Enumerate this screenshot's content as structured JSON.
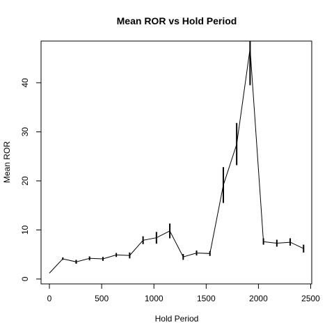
{
  "chart_data": {
    "type": "line",
    "title": "Mean ROR vs Hold Period",
    "xlabel": "Hold Period",
    "ylabel": "Mean ROR",
    "xlim": [
      -80,
      2510
    ],
    "ylim": [
      -1,
      48.5
    ],
    "xticks": [
      0,
      500,
      1000,
      1500,
      2000,
      2500
    ],
    "yticks": [
      0,
      10,
      20,
      30,
      40
    ],
    "grid": false,
    "series": [
      {
        "x": [
          0,
          128,
          256,
          384,
          512,
          640,
          768,
          896,
          1024,
          1152,
          1280,
          1408,
          1536,
          1664,
          1792,
          1920,
          2048,
          2176,
          2304,
          2432
        ],
        "y": [
          1.2,
          4.1,
          3.5,
          4.2,
          4.1,
          4.9,
          4.8,
          7.9,
          8.4,
          9.8,
          4.5,
          5.3,
          5.2,
          19.1,
          27.5,
          47.0,
          7.6,
          7.3,
          7.5,
          6.2
        ],
        "err_low": [
          1.2,
          3.9,
          3.1,
          3.8,
          3.7,
          4.5,
          4.2,
          7.1,
          7.2,
          8.3,
          3.9,
          4.8,
          4.7,
          15.5,
          23.2,
          39.5,
          7.0,
          6.6,
          6.8,
          5.4
        ],
        "err_high": [
          1.2,
          4.4,
          3.9,
          4.6,
          4.5,
          5.3,
          5.4,
          8.7,
          9.6,
          11.3,
          5.1,
          5.8,
          5.7,
          22.8,
          31.8,
          48.5,
          8.3,
          8.0,
          8.3,
          7.0
        ]
      }
    ]
  }
}
